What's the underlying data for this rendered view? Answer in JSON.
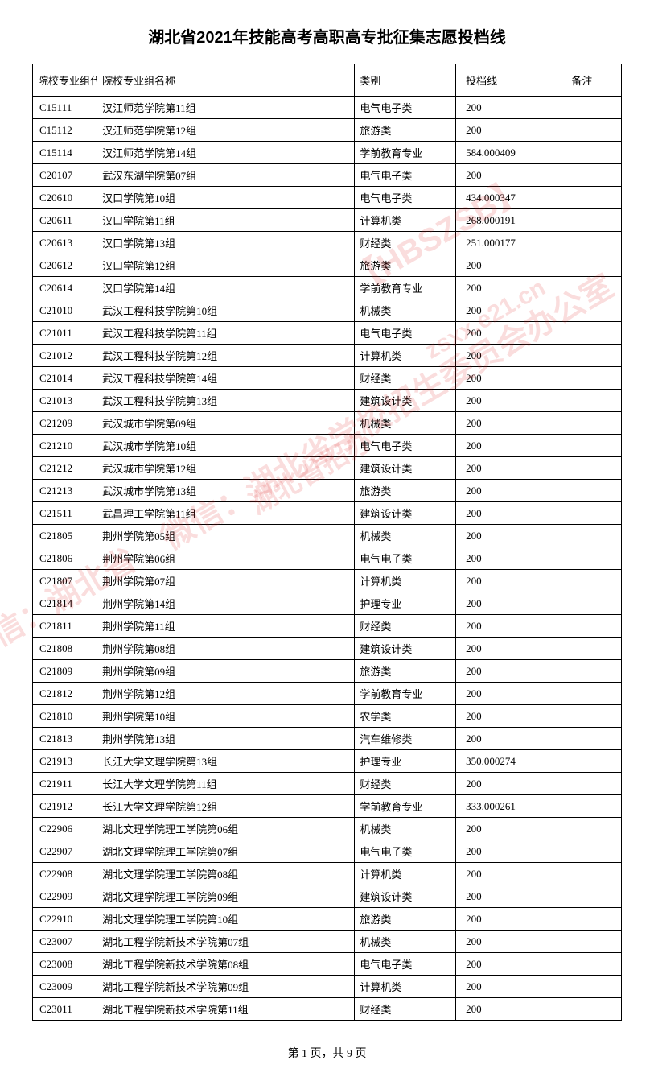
{
  "title": "湖北省2021年技能高考高职高专批征集志愿投档线",
  "columns": [
    "院校专业组代号",
    "院校专业组名称",
    "类别",
    "投档线",
    "备注"
  ],
  "footer": "第 1 页，共 9 页",
  "watermarks": {
    "wm1": "【HBSZSB】",
    "wm2": "微信：湖北省学校招生委员会办公室",
    "wm3": "湖北省招办",
    "wm4": "微信：湖北省",
    "wm5": "zsxx.e21.cn"
  },
  "rows": [
    {
      "code": "C15111",
      "name": "汉江师范学院第11组",
      "cat": "电气电子类",
      "score": "200",
      "note": ""
    },
    {
      "code": "C15112",
      "name": "汉江师范学院第12组",
      "cat": "旅游类",
      "score": "200",
      "note": ""
    },
    {
      "code": "C15114",
      "name": "汉江师范学院第14组",
      "cat": "学前教育专业",
      "score": "584.000409",
      "note": ""
    },
    {
      "code": "C20107",
      "name": "武汉东湖学院第07组",
      "cat": "电气电子类",
      "score": "200",
      "note": ""
    },
    {
      "code": "C20610",
      "name": "汉口学院第10组",
      "cat": "电气电子类",
      "score": "434.000347",
      "note": ""
    },
    {
      "code": "C20611",
      "name": "汉口学院第11组",
      "cat": "计算机类",
      "score": "268.000191",
      "note": ""
    },
    {
      "code": "C20613",
      "name": "汉口学院第13组",
      "cat": "财经类",
      "score": "251.000177",
      "note": ""
    },
    {
      "code": "C20612",
      "name": "汉口学院第12组",
      "cat": "旅游类",
      "score": "200",
      "note": ""
    },
    {
      "code": "C20614",
      "name": "汉口学院第14组",
      "cat": "学前教育专业",
      "score": "200",
      "note": ""
    },
    {
      "code": "C21010",
      "name": "武汉工程科技学院第10组",
      "cat": "机械类",
      "score": "200",
      "note": ""
    },
    {
      "code": "C21011",
      "name": "武汉工程科技学院第11组",
      "cat": "电气电子类",
      "score": "200",
      "note": ""
    },
    {
      "code": "C21012",
      "name": "武汉工程科技学院第12组",
      "cat": "计算机类",
      "score": "200",
      "note": ""
    },
    {
      "code": "C21014",
      "name": "武汉工程科技学院第14组",
      "cat": "财经类",
      "score": "200",
      "note": ""
    },
    {
      "code": "C21013",
      "name": "武汉工程科技学院第13组",
      "cat": "建筑设计类",
      "score": "200",
      "note": ""
    },
    {
      "code": "C21209",
      "name": "武汉城市学院第09组",
      "cat": "机械类",
      "score": "200",
      "note": ""
    },
    {
      "code": "C21210",
      "name": "武汉城市学院第10组",
      "cat": "电气电子类",
      "score": "200",
      "note": ""
    },
    {
      "code": "C21212",
      "name": "武汉城市学院第12组",
      "cat": "建筑设计类",
      "score": "200",
      "note": ""
    },
    {
      "code": "C21213",
      "name": "武汉城市学院第13组",
      "cat": "旅游类",
      "score": "200",
      "note": ""
    },
    {
      "code": "C21511",
      "name": "武昌理工学院第11组",
      "cat": "建筑设计类",
      "score": "200",
      "note": ""
    },
    {
      "code": "C21805",
      "name": "荆州学院第05组",
      "cat": "机械类",
      "score": "200",
      "note": ""
    },
    {
      "code": "C21806",
      "name": "荆州学院第06组",
      "cat": "电气电子类",
      "score": "200",
      "note": ""
    },
    {
      "code": "C21807",
      "name": "荆州学院第07组",
      "cat": "计算机类",
      "score": "200",
      "note": ""
    },
    {
      "code": "C21814",
      "name": "荆州学院第14组",
      "cat": "护理专业",
      "score": "200",
      "note": ""
    },
    {
      "code": "C21811",
      "name": "荆州学院第11组",
      "cat": "财经类",
      "score": "200",
      "note": ""
    },
    {
      "code": "C21808",
      "name": "荆州学院第08组",
      "cat": "建筑设计类",
      "score": "200",
      "note": ""
    },
    {
      "code": "C21809",
      "name": "荆州学院第09组",
      "cat": "旅游类",
      "score": "200",
      "note": ""
    },
    {
      "code": "C21812",
      "name": "荆州学院第12组",
      "cat": "学前教育专业",
      "score": "200",
      "note": ""
    },
    {
      "code": "C21810",
      "name": "荆州学院第10组",
      "cat": "农学类",
      "score": "200",
      "note": ""
    },
    {
      "code": "C21813",
      "name": "荆州学院第13组",
      "cat": "汽车维修类",
      "score": "200",
      "note": ""
    },
    {
      "code": "C21913",
      "name": "长江大学文理学院第13组",
      "cat": "护理专业",
      "score": "350.000274",
      "note": ""
    },
    {
      "code": "C21911",
      "name": "长江大学文理学院第11组",
      "cat": "财经类",
      "score": "200",
      "note": ""
    },
    {
      "code": "C21912",
      "name": "长江大学文理学院第12组",
      "cat": "学前教育专业",
      "score": "333.000261",
      "note": ""
    },
    {
      "code": "C22906",
      "name": "湖北文理学院理工学院第06组",
      "cat": "机械类",
      "score": "200",
      "note": ""
    },
    {
      "code": "C22907",
      "name": "湖北文理学院理工学院第07组",
      "cat": "电气电子类",
      "score": "200",
      "note": ""
    },
    {
      "code": "C22908",
      "name": "湖北文理学院理工学院第08组",
      "cat": "计算机类",
      "score": "200",
      "note": ""
    },
    {
      "code": "C22909",
      "name": "湖北文理学院理工学院第09组",
      "cat": "建筑设计类",
      "score": "200",
      "note": ""
    },
    {
      "code": "C22910",
      "name": "湖北文理学院理工学院第10组",
      "cat": "旅游类",
      "score": "200",
      "note": ""
    },
    {
      "code": "C23007",
      "name": "湖北工程学院新技术学院第07组",
      "cat": "机械类",
      "score": "200",
      "note": ""
    },
    {
      "code": "C23008",
      "name": "湖北工程学院新技术学院第08组",
      "cat": "电气电子类",
      "score": "200",
      "note": ""
    },
    {
      "code": "C23009",
      "name": "湖北工程学院新技术学院第09组",
      "cat": "计算机类",
      "score": "200",
      "note": ""
    },
    {
      "code": "C23011",
      "name": "湖北工程学院新技术学院第11组",
      "cat": "财经类",
      "score": "200",
      "note": ""
    }
  ]
}
